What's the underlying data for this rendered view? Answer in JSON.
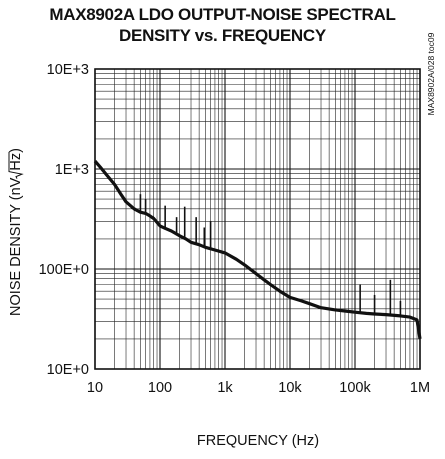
{
  "chart_data": {
    "type": "line",
    "title_line1": "MAX8902A LDO OUTPUT-NOISE SPECTRAL",
    "title_line2": "DENSITY vs. FREQUENCY",
    "xlabel": "FREQUENCY (Hz)",
    "ylabel": "NOISE DENSITY (nV/√Hz)",
    "ylabel_prefix": "NOISE DENSITY (nV",
    "ylabel_radicand": "Hz",
    "ylabel_suffix": ")",
    "side_note": "MAX8902A/028 toc09",
    "x_scale": "log",
    "y_scale": "log",
    "xlim": [
      10,
      1000000
    ],
    "ylim": [
      10,
      10000
    ],
    "grid": true,
    "x_ticks": [
      {
        "value": 10,
        "label": "10"
      },
      {
        "value": 100,
        "label": "100"
      },
      {
        "value": 1000,
        "label": "1k"
      },
      {
        "value": 10000,
        "label": "10k"
      },
      {
        "value": 100000,
        "label": "100k"
      },
      {
        "value": 1000000,
        "label": "1M"
      }
    ],
    "y_ticks": [
      {
        "value": 10,
        "label": "10E+0"
      },
      {
        "value": 100,
        "label": "100E+0"
      },
      {
        "value": 1000,
        "label": "1E+3"
      },
      {
        "value": 10000,
        "label": "10E+3"
      }
    ],
    "series": [
      {
        "color": "#111111",
        "x": [
          10,
          12,
          15,
          20,
          25,
          30,
          40,
          50,
          60,
          70,
          80,
          100,
          120,
          150,
          200,
          250,
          300,
          400,
          500,
          700,
          1000,
          1500,
          2000,
          3000,
          4000,
          5000,
          7000,
          10000,
          15000,
          20000,
          30000,
          50000,
          70000,
          100000,
          150000,
          200000,
          300000,
          500000,
          700000,
          900000,
          1000000
        ],
        "y": [
          1200,
          1050,
          880,
          700,
          560,
          470,
          400,
          370,
          360,
          340,
          320,
          270,
          255,
          240,
          215,
          200,
          185,
          175,
          165,
          155,
          145,
          125,
          110,
          90,
          78,
          70,
          60,
          52,
          48,
          45,
          41,
          39,
          38,
          37,
          36,
          35.5,
          35,
          34,
          33,
          31,
          20
        ]
      }
    ],
    "spikes": [
      {
        "x": 50,
        "y": 560
      },
      {
        "x": 60,
        "y": 500
      },
      {
        "x": 120,
        "y": 430
      },
      {
        "x": 180,
        "y": 330
      },
      {
        "x": 240,
        "y": 420
      },
      {
        "x": 360,
        "y": 330
      },
      {
        "x": 480,
        "y": 260
      },
      {
        "x": 600,
        "y": 300
      },
      {
        "x": 120000,
        "y": 70
      },
      {
        "x": 200000,
        "y": 55
      },
      {
        "x": 350000,
        "y": 78
      },
      {
        "x": 500000,
        "y": 48
      }
    ]
  }
}
